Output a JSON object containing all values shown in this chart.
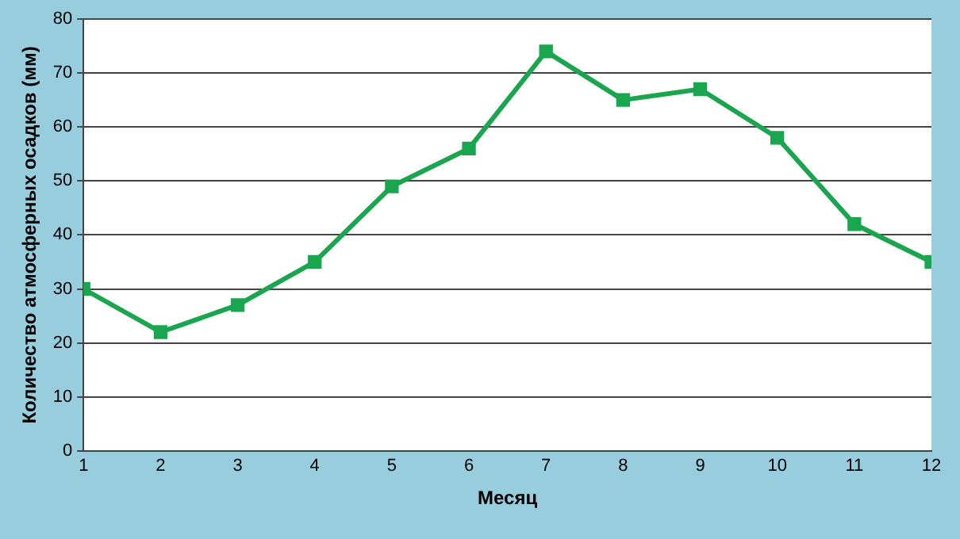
{
  "chart_data": {
    "type": "line",
    "xlabel": "Месяц",
    "ylabel": "Количество атмосферных осадков (мм)",
    "x": [
      1,
      2,
      3,
      4,
      5,
      6,
      7,
      8,
      9,
      10,
      11,
      12
    ],
    "series": [
      {
        "color": "#1aa64f",
        "values": [
          30,
          22,
          27,
          35,
          49,
          56,
          74,
          65,
          67,
          58,
          42,
          35
        ]
      }
    ],
    "xlim": [
      1,
      12
    ],
    "xticks": [
      1,
      2,
      3,
      4,
      5,
      6,
      7,
      8,
      9,
      10,
      11,
      12
    ],
    "ylim": [
      0,
      80
    ],
    "yticks": [
      0,
      10,
      20,
      30,
      40,
      50,
      60,
      70,
      80
    ],
    "grid": "y",
    "legend": false,
    "marker": "square",
    "line_style": "solid"
  }
}
